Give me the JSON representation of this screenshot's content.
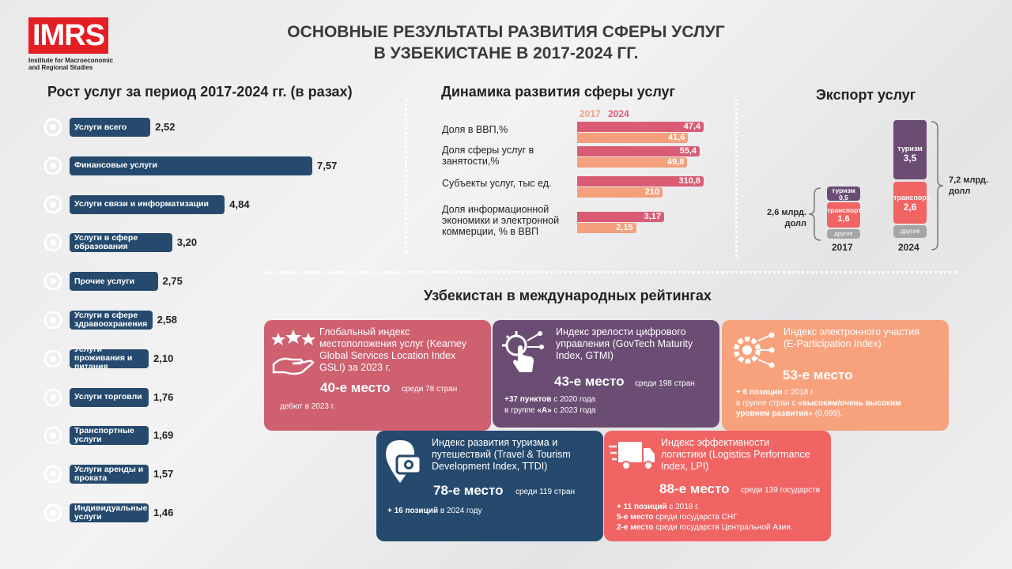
{
  "logo": {
    "text": "IMRS",
    "subtitle_line1": "Institute for Macroeconomic",
    "subtitle_line2": "and Regional Studies"
  },
  "title_line1": "ОСНОВНЫЕ РЕЗУЛЬТАТЫ РАЗВИТИЯ СФЕРЫ УСЛУГ",
  "title_line2": "В УЗБЕКИСТАНЕ В 2017-2024 ГГ.",
  "growth": {
    "title": "Рост услуг за период 2017-2024 гг. (в разах)"
  },
  "dynamics": {
    "title": "Динамика развития сферы услуг",
    "legend_2017": "2017",
    "legend_2024": "2024"
  },
  "export": {
    "title": "Экспорт услуг",
    "total_2017_line1": "2,6 млрд.",
    "total_2017_line2": "долл",
    "total_2024_line1": "7,2 млрд.",
    "total_2024_line2": "долл",
    "year_2017": "2017",
    "year_2024": "2024",
    "tourism_label": "туризм",
    "transport_label": "транспорт",
    "other_label": "другие",
    "v2017_tourism": "0,5",
    "v2017_transport": "1,6",
    "v2024_tourism": "3,5",
    "v2024_transport": "2,6"
  },
  "ratings": {
    "title": "Узбекистан в международных рейтингах",
    "gsli": {
      "title_l1": "Глобальный индекс",
      "title_l2": "местоположения услуг (Kearney",
      "title_l3": "Global Services Location Index",
      "title_l4": "GSLI) за 2023 г.",
      "rank": "40-е место",
      "rank_suffix": "среди 78 стран",
      "note": "дебют в 2023 г."
    },
    "gtmi": {
      "title_l1": "Индекс зрелости цифрового",
      "title_l2": "управления (GovTech Maturity",
      "title_l3": "Index, GTMI)",
      "rank": "43-е место",
      "rank_suffix": "среди 198 стран",
      "note1_bold": "+37 пунктов",
      "note1_rest": "с 2020 года",
      "note2_pre": "в группе",
      "note2_bold": "«А»",
      "note2_rest": "с  2023 года"
    },
    "epart": {
      "title_l1": "Индекс электронного участия",
      "title_l2": "(E-Participation Index)",
      "rank": "53-е место",
      "note1_bold": "+ 6 позиции",
      "note1_rest": "с 2018 г.",
      "note2_pre": "в группе стран с",
      "note2_bold": "«высоким/очень высоким",
      "note3_bold": "уровнем развития»",
      "note3_rest": "(0,699)."
    },
    "ttdi": {
      "title_l1": "Индекс развития туризма и",
      "title_l2": "путешествий (Travel & Tourism",
      "title_l3": "Development Index, TTDI)",
      "rank": "78-е место",
      "rank_suffix": "среди 119 стран",
      "note_bold": "+ 16 позиций",
      "note_rest": "в 2024 году"
    },
    "lpi": {
      "title_l1": "Индекс эффективности",
      "title_l2": "логистики (Logistics Performance",
      "title_l3": "Index, LPI)",
      "rank": "88-е место",
      "rank_suffix": "среди 139 государств",
      "note1_bold": "+ 11 позиций",
      "note1_rest": "с 2018 г.",
      "note2_bold": "5-е место",
      "note2_rest": "среди государств СНГ",
      "note3_bold": "2-е место",
      "note3_rest": "среди государств Центральной Азии."
    }
  },
  "colors": {
    "navy": "#264a6e",
    "rose_2024": "#d95c74",
    "peach_2017": "#f4a07c",
    "purple": "#6b4d74",
    "card_rose": "#cf6070",
    "card_peach": "#f7a27d",
    "card_red": "#f06464"
  },
  "chart_data": [
    {
      "type": "bar",
      "title": "Рост услуг за период 2017-2024 гг. (в разах)",
      "categories": [
        "Услуги  всего",
        "Финансовые услуги",
        "Услуги связи и информатизации",
        "Услуги в сфере образования",
        "Прочие услуги",
        "Услуги в сфере здравоохранения",
        "Услуги проживания и питания",
        "Услуги торговли",
        "Транспортные услуги",
        "Услуги аренды и проката",
        "Индивидуальные услуги"
      ],
      "values": [
        2.52,
        7.57,
        4.84,
        3.2,
        2.75,
        2.58,
        2.1,
        1.76,
        1.69,
        1.57,
        1.46
      ],
      "value_labels": [
        "2,52",
        "7,57",
        "4,84",
        "3,20",
        "2,75",
        "2,58",
        "2,10",
        "1,76",
        "1,69",
        "1,57",
        "1,46"
      ]
    },
    {
      "type": "bar",
      "title": "Динамика развития сферы услуг",
      "categories": [
        "Доля в ВВП,%",
        "Доля сферы услуг в занятости,%",
        "Субъекты услуг, тыс ед.",
        "Доля информационной экономики и электронной коммерции, % в ВВП"
      ],
      "series": [
        {
          "name": "2017",
          "values": [
            41.6,
            49.8,
            210,
            2.15
          ],
          "value_labels": [
            "41,6",
            "49,8",
            "210",
            "2,15"
          ]
        },
        {
          "name": "2024",
          "values": [
            47.4,
            55.4,
            310.8,
            3.17
          ],
          "value_labels": [
            "47,4",
            "55,4",
            "310,8",
            "3,17"
          ]
        }
      ]
    },
    {
      "type": "bar",
      "title": "Экспорт услуг",
      "categories": [
        "2017",
        "2024"
      ],
      "series": [
        {
          "name": "другие",
          "values": [
            0.5,
            1.1
          ]
        },
        {
          "name": "транспорт",
          "values": [
            1.6,
            2.6
          ]
        },
        {
          "name": "туризм",
          "values": [
            0.5,
            3.5
          ]
        }
      ],
      "totals": [
        2.6,
        7.2
      ]
    }
  ]
}
